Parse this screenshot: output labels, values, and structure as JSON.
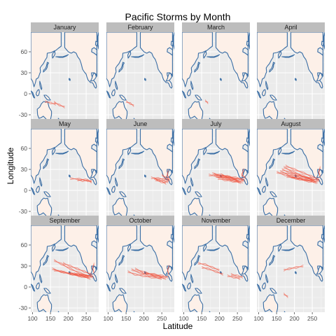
{
  "chart_data": {
    "type": "faceted-map-tracks",
    "title": "Pacific Storms by Month",
    "xlabel": "Latitude",
    "ylabel": "Longitude",
    "x_ticks": [
      100,
      150,
      200,
      250
    ],
    "y_ticks": [
      -30,
      0,
      30,
      60
    ],
    "xlim": [
      95,
      285
    ],
    "ylim": [
      -36,
      88
    ],
    "grid": true,
    "colors": {
      "panel_bg": "#ebebeb",
      "grid": "#ffffff",
      "strip_bg": "#bdbdbd",
      "land_fill": "#fdf0e8",
      "coast": "#3a6ea5",
      "track": "#f0503a"
    },
    "facets": [
      {
        "label": "January",
        "tracks": [
          {
            "name": "",
            "points": [
              [
                160,
                -12
              ],
              [
                175,
                -16
              ],
              [
                190,
                -19
              ]
            ]
          },
          {
            "name": "",
            "points": [
              [
                135,
                -11
              ],
              [
                150,
                -13
              ],
              [
                165,
                -15
              ]
            ]
          }
        ]
      },
      {
        "label": "February",
        "tracks": [
          {
            "name": "",
            "points": [
              [
                150,
                -11
              ],
              [
                162,
                -14
              ],
              [
                172,
                -17
              ]
            ]
          }
        ]
      },
      {
        "label": "March",
        "tracks": [
          {
            "name": "",
            "points": [
              [
                160,
                -10
              ],
              [
                168,
                -13
              ]
            ]
          }
        ]
      },
      {
        "label": "April",
        "tracks": []
      },
      {
        "label": "May",
        "tracks": [
          {
            "name": "",
            "points": [
              [
                265,
                12
              ],
              [
                250,
                15
              ],
              [
                230,
                16
              ],
              [
                205,
                17
              ]
            ]
          },
          {
            "name": "",
            "points": [
              [
                265,
                13
              ],
              [
                255,
                14
              ],
              [
                240,
                14
              ],
              [
                225,
                15
              ]
            ]
          }
        ]
      },
      {
        "label": "June",
        "tracks": [
          {
            "name": "",
            "points": [
              [
                270,
                14
              ],
              [
                255,
                16
              ],
              [
                240,
                17
              ],
              [
                220,
                18
              ]
            ]
          },
          {
            "name": "",
            "points": [
              [
                268,
                12
              ],
              [
                255,
                13
              ],
              [
                240,
                15
              ],
              [
                228,
                17
              ]
            ]
          },
          {
            "name": "",
            "points": [
              [
                272,
                15
              ],
              [
                262,
                18
              ],
              [
                250,
                22
              ]
            ]
          },
          {
            "name": "",
            "points": [
              [
                262,
                10
              ],
              [
                250,
                12
              ],
              [
                232,
                15
              ]
            ]
          },
          {
            "name": "",
            "points": [
              [
                270,
                18
              ],
              [
                265,
                22
              ],
              [
                268,
                28
              ]
            ]
          }
        ]
      },
      {
        "label": "July",
        "tracks": [
          {
            "name": "",
            "points": [
              [
                270,
                14
              ],
              [
                250,
                16
              ],
              [
                225,
                18
              ],
              [
                195,
                20
              ],
              [
                170,
                22
              ]
            ]
          },
          {
            "name": "",
            "points": [
              [
                265,
                12
              ],
              [
                240,
                14
              ],
              [
                215,
                17
              ],
              [
                190,
                20
              ]
            ]
          },
          {
            "name": "",
            "points": [
              [
                268,
                16
              ],
              [
                245,
                18
              ],
              [
                222,
                20
              ],
              [
                205,
                22
              ]
            ]
          },
          {
            "name": "",
            "points": [
              [
                260,
                11
              ],
              [
                238,
                13
              ],
              [
                215,
                15
              ],
              [
                195,
                17
              ]
            ]
          },
          {
            "name": "",
            "points": [
              [
                272,
                18
              ],
              [
                262,
                22
              ],
              [
                268,
                30
              ]
            ]
          },
          {
            "name": "",
            "points": [
              [
                255,
                13
              ],
              [
                232,
                17
              ],
              [
                210,
                20
              ],
              [
                185,
                23
              ]
            ]
          },
          {
            "name": "",
            "points": [
              [
                250,
                15
              ],
              [
                228,
                19
              ],
              [
                205,
                22
              ],
              [
                180,
                24
              ]
            ]
          }
        ]
      },
      {
        "label": "August",
        "tracks": [
          {
            "name": "",
            "points": [
              [
                270,
                14
              ],
              [
                245,
                17
              ],
              [
                215,
                20
              ],
              [
                185,
                23
              ],
              [
                160,
                27
              ]
            ]
          },
          {
            "name": "",
            "points": [
              [
                265,
                12
              ],
              [
                240,
                15
              ],
              [
                210,
                18
              ],
              [
                175,
                22
              ],
              [
                150,
                26
              ]
            ]
          },
          {
            "name": "",
            "points": [
              [
                268,
                16
              ],
              [
                248,
                20
              ],
              [
                225,
                25
              ],
              [
                200,
                30
              ],
              [
                175,
                35
              ]
            ]
          },
          {
            "name": "",
            "points": [
              [
                262,
                11
              ],
              [
                240,
                13
              ],
              [
                215,
                16
              ],
              [
                190,
                19
              ]
            ]
          },
          {
            "name": "",
            "points": [
              [
                272,
                20
              ],
              [
                268,
                26
              ],
              [
                272,
                33
              ]
            ]
          },
          {
            "name": "",
            "points": [
              [
                258,
                14
              ],
              [
                235,
                18
              ],
              [
                210,
                22
              ],
              [
                185,
                26
              ],
              [
                165,
                30
              ]
            ]
          },
          {
            "name": "",
            "points": [
              [
                255,
                13
              ],
              [
                230,
                15
              ],
              [
                205,
                17
              ],
              [
                178,
                20
              ]
            ]
          },
          {
            "name": "",
            "points": [
              [
                250,
                16
              ],
              [
                222,
                21
              ],
              [
                195,
                27
              ],
              [
                170,
                33
              ]
            ]
          }
        ]
      },
      {
        "label": "September",
        "tracks": [
          {
            "name": "",
            "points": [
              [
                270,
                14
              ],
              [
                250,
                16
              ],
              [
                228,
                18
              ],
              [
                205,
                20
              ]
            ]
          },
          {
            "name": "",
            "points": [
              [
                265,
                18
              ],
              [
                245,
                22
              ],
              [
                225,
                26
              ],
              [
                205,
                30
              ],
              [
                185,
                34
              ]
            ]
          },
          {
            "name": "",
            "points": [
              [
                272,
                20
              ],
              [
                268,
                27
              ],
              [
                272,
                33
              ]
            ]
          },
          {
            "name": "",
            "points": [
              [
                262,
                12
              ],
              [
                238,
                15
              ],
              [
                212,
                18
              ],
              [
                188,
                21
              ],
              [
                160,
                24
              ]
            ]
          },
          {
            "name": "",
            "points": [
              [
                258,
                15
              ],
              [
                232,
                20
              ],
              [
                205,
                26
              ],
              [
                180,
                33
              ],
              [
                160,
                38
              ]
            ]
          },
          {
            "name": "",
            "points": [
              [
                268,
                16
              ],
              [
                242,
                17
              ],
              [
                215,
                19
              ]
            ]
          },
          {
            "name": "",
            "points": [
              [
                255,
                14
              ],
              [
                230,
                16
              ],
              [
                205,
                19
              ],
              [
                180,
                22
              ],
              [
                155,
                26
              ]
            ]
          }
        ]
      },
      {
        "label": "October",
        "tracks": [
          {
            "name": "",
            "points": [
              [
                268,
                14
              ],
              [
                250,
                16
              ],
              [
                228,
                18
              ],
              [
                205,
                20
              ]
            ]
          },
          {
            "name": "",
            "points": [
              [
                262,
                12
              ],
              [
                240,
                14
              ],
              [
                215,
                17
              ],
              [
                190,
                20
              ],
              [
                165,
                25
              ]
            ]
          },
          {
            "name": "",
            "points": [
              [
                270,
                18
              ],
              [
                266,
                24
              ],
              [
                270,
                30
              ]
            ]
          },
          {
            "name": "",
            "points": [
              [
                255,
                14
              ],
              [
                230,
                17
              ],
              [
                200,
                21
              ],
              [
                175,
                26
              ]
            ]
          },
          {
            "name": "",
            "points": [
              [
                250,
                12
              ],
              [
                222,
                14
              ],
              [
                198,
                16
              ],
              [
                175,
                18
              ],
              [
                155,
                22
              ]
            ]
          }
        ]
      },
      {
        "label": "November",
        "tracks": [
          {
            "name": "",
            "points": [
              [
                265,
                14
              ],
              [
                250,
                16
              ],
              [
                232,
                18
              ]
            ]
          },
          {
            "name": "",
            "points": [
              [
                258,
                12
              ],
              [
                240,
                14
              ],
              [
                222,
                16
              ]
            ]
          },
          {
            "name": "",
            "points": [
              [
                200,
                24
              ],
              [
                180,
                28
              ],
              [
                160,
                32
              ],
              [
                140,
                34
              ]
            ]
          },
          {
            "name": "",
            "points": [
              [
                210,
                18
              ],
              [
                190,
                22
              ],
              [
                168,
                26
              ],
              [
                150,
                28
              ]
            ]
          }
        ]
      },
      {
        "label": "December",
        "tracks": [
          {
            "name": "",
            "points": [
              [
                225,
                30
              ],
              [
                205,
                28
              ],
              [
                185,
                26
              ],
              [
                170,
                24
              ]
            ]
          },
          {
            "name": "",
            "points": [
              [
                170,
                -10
              ],
              [
                182,
                -14
              ]
            ]
          }
        ]
      }
    ]
  }
}
